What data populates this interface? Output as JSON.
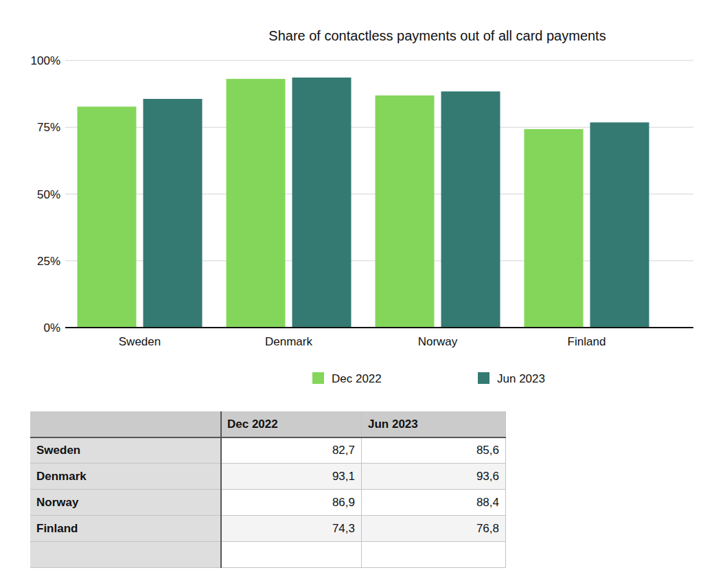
{
  "chart_data": {
    "type": "bar",
    "title": "Share of contactless payments out of all card payments",
    "categories": [
      "Sweden",
      "Denmark",
      "Norway",
      "Finland"
    ],
    "series": [
      {
        "name": "Dec 2022",
        "color": "#84d65a",
        "values": [
          82.7,
          93.1,
          86.9,
          74.3
        ]
      },
      {
        "name": "Jun 2023",
        "color": "#347a72",
        "values": [
          85.6,
          93.6,
          88.4,
          76.8
        ]
      }
    ],
    "ylim": [
      0,
      100
    ],
    "yticks": [
      {
        "value": 0,
        "label": "0%"
      },
      {
        "value": 25,
        "label": "25%"
      },
      {
        "value": 50,
        "label": "50%"
      },
      {
        "value": 75,
        "label": "75%"
      },
      {
        "value": 100,
        "label": "100%"
      }
    ],
    "grid": true,
    "legend": "bottom"
  },
  "table": {
    "header": [
      "Dec 2022",
      "Jun 2023"
    ],
    "rows": [
      {
        "label": "Sweden",
        "cells": [
          "82,7",
          "85,6"
        ]
      },
      {
        "label": "Denmark",
        "cells": [
          "93,1",
          "93,6"
        ]
      },
      {
        "label": "Norway",
        "cells": [
          "86,9",
          "88,4"
        ]
      },
      {
        "label": "Finland",
        "cells": [
          "74,3",
          "76,8"
        ]
      }
    ]
  }
}
